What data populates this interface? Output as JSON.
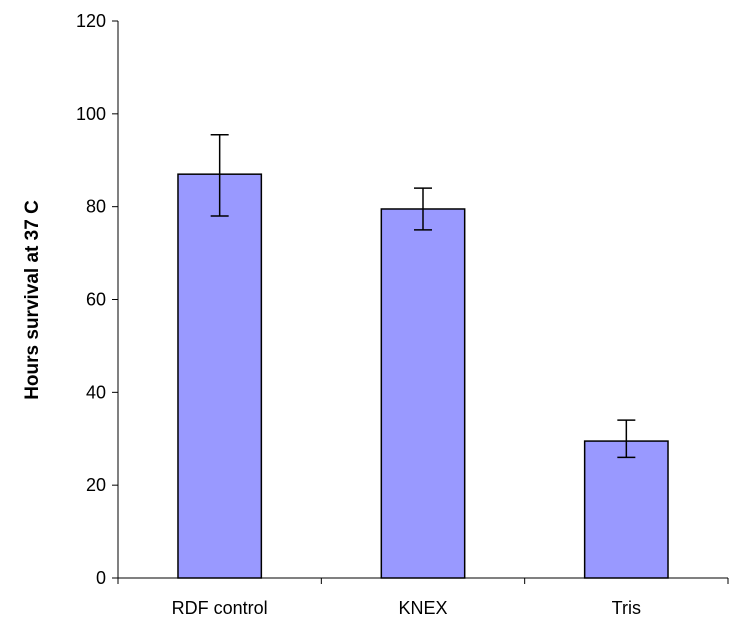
{
  "chart_data": {
    "type": "bar",
    "categories": [
      "RDF control",
      "KNEX",
      "Tris"
    ],
    "values": [
      87,
      79.5,
      29.5
    ],
    "error": [
      [
        78,
        95.5
      ],
      [
        75,
        84
      ],
      [
        26,
        34
      ]
    ],
    "title": "",
    "xlabel": "",
    "ylabel": "Hours survival at 37 C",
    "ylim": [
      0,
      120
    ],
    "yticks": [
      0,
      20,
      40,
      60,
      80,
      100,
      120
    ],
    "grid": false,
    "bar_color": "#9999ff"
  }
}
